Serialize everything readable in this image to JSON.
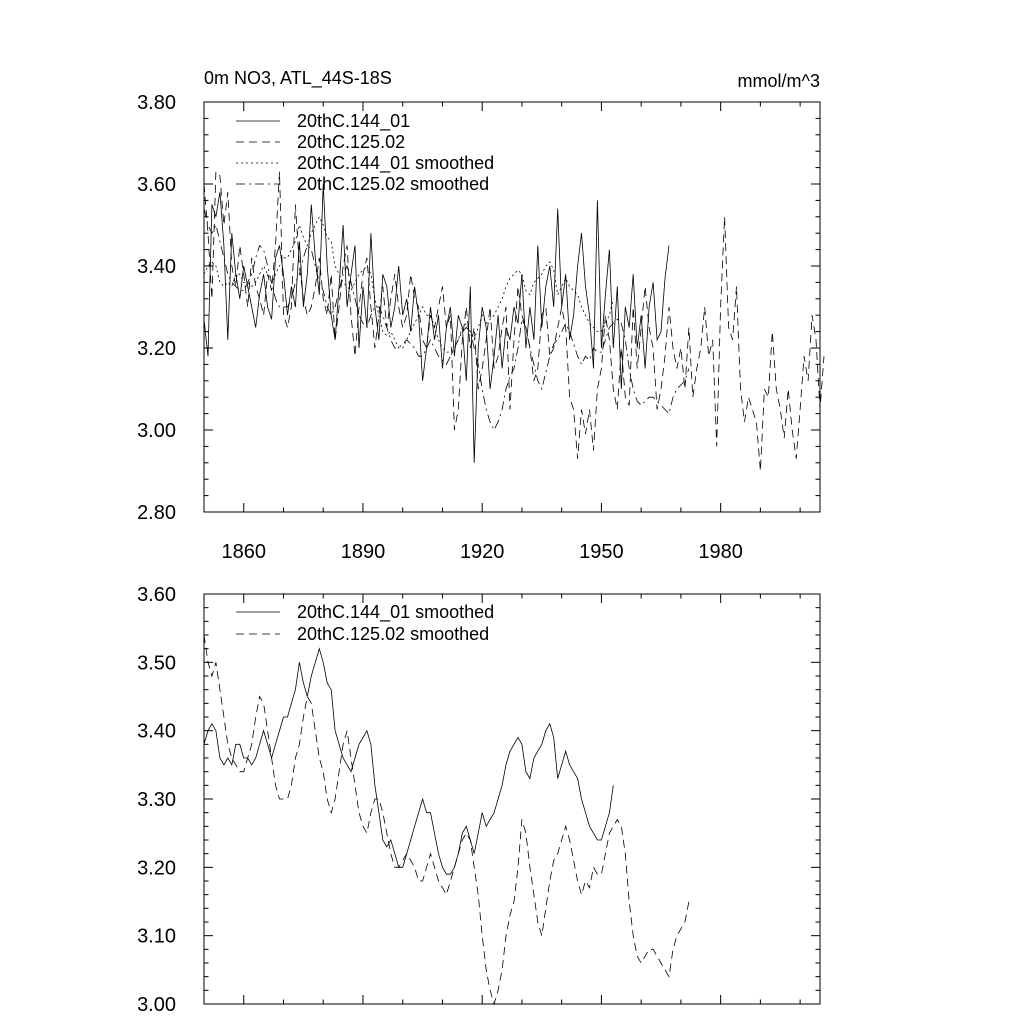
{
  "chart_data": [
    {
      "type": "line",
      "title": "0m NO3, ATL_44S-18S",
      "units": "mmol/m^3",
      "xlim": [
        1850,
        2005
      ],
      "ylim": [
        2.8,
        3.8
      ],
      "yticks": [
        "3.80",
        "3.60",
        "3.40",
        "3.20",
        "3.00",
        "2.80"
      ],
      "xticks": [
        "1860",
        "1890",
        "1920",
        "1950",
        "1980"
      ],
      "legend_position": "top-left",
      "series": [
        {
          "name": "20thC.144_01",
          "style": "solid",
          "x_start": 1850,
          "values": [
            3.27,
            3.18,
            3.55,
            3.52,
            3.58,
            3.45,
            3.22,
            3.48,
            3.38,
            3.32,
            3.4,
            3.35,
            3.3,
            3.25,
            3.33,
            3.38,
            3.3,
            3.27,
            3.42,
            3.45,
            3.38,
            3.28,
            3.35,
            3.3,
            3.46,
            3.3,
            3.38,
            3.55,
            3.42,
            3.33,
            3.6,
            3.4,
            3.28,
            3.22,
            3.35,
            3.5,
            3.3,
            3.38,
            3.45,
            3.2,
            3.35,
            3.25,
            3.48,
            3.3,
            3.22,
            3.38,
            3.35,
            3.25,
            3.3,
            3.4,
            3.28,
            3.32,
            3.24,
            3.35,
            3.28,
            3.12,
            3.2,
            3.3,
            3.22,
            3.28,
            3.15,
            3.25,
            3.3,
            3.18,
            3.28,
            3.25,
            3.12,
            3.35,
            2.92,
            3.2,
            3.3,
            3.25,
            3.1,
            3.18,
            3.28,
            3.15,
            3.25,
            3.22,
            3.3,
            3.26,
            3.38,
            3.2,
            3.3,
            3.22,
            3.45,
            3.25,
            3.35,
            3.4,
            3.3,
            3.54,
            3.3,
            3.38,
            3.22,
            3.28,
            3.4,
            3.48,
            3.35,
            3.28,
            3.15,
            3.56,
            3.2,
            3.33,
            3.44,
            3.2,
            3.35,
            3.1,
            3.3,
            3.25,
            3.38,
            3.2,
            3.28,
            3.15,
            3.3,
            3.36,
            3.22,
            3.24,
            3.37,
            3.45
          ]
        },
        {
          "name": "20thC.125.02",
          "style": "dashed",
          "x_start": 1850,
          "values": [
            3.6,
            3.48,
            3.32,
            3.63,
            3.62,
            3.5,
            3.58,
            3.4,
            3.35,
            3.45,
            3.38,
            3.3,
            3.42,
            3.35,
            3.32,
            3.28,
            3.38,
            3.34,
            3.45,
            3.63,
            3.28,
            3.25,
            3.3,
            3.55,
            3.4,
            3.32,
            3.28,
            3.3,
            3.35,
            3.42,
            3.32,
            3.28,
            3.38,
            3.22,
            3.3,
            3.4,
            3.45,
            3.28,
            3.18,
            3.3,
            3.38,
            3.42,
            3.3,
            3.2,
            3.28,
            3.35,
            3.25,
            3.32,
            3.38,
            3.3,
            3.25,
            3.28,
            3.38,
            3.32,
            3.3,
            3.22,
            3.2,
            3.28,
            3.25,
            3.3,
            3.35,
            3.25,
            3.28,
            3.0,
            3.05,
            3.22,
            3.3,
            3.2,
            3.25,
            3.1,
            3.15,
            3.22,
            3.3,
            3.15,
            3.18,
            3.25,
            3.3,
            3.05,
            3.22,
            3.35,
            3.28,
            3.25,
            3.2,
            3.12,
            3.15,
            3.28,
            3.3,
            3.18,
            3.2,
            3.25,
            3.3,
            3.25,
            3.08,
            3.05,
            2.93,
            3.05,
            2.99,
            3.05,
            2.95,
            3.1,
            3.15,
            3.28,
            3.22,
            3.1,
            3.05,
            3.2,
            3.08,
            3.06,
            3.3,
            3.15,
            3.25,
            3.35,
            3.25,
            3.2,
            3.05,
            3.1,
            3.18,
            3.3,
            3.2,
            3.15,
            3.2,
            3.1,
            3.25,
            3.08,
            3.15,
            3.2,
            3.3,
            3.18,
            3.22,
            2.96,
            3.3,
            3.52,
            3.25,
            3.22,
            3.35,
            3.1,
            3.02,
            3.08,
            3.05,
            3.02,
            2.9,
            3.1,
            3.08,
            3.24,
            3.1,
            3.05,
            2.98,
            3.1,
            3.0,
            2.93,
            3.05,
            3.18,
            3.12,
            3.28,
            3.22,
            3.05,
            3.18
          ]
        },
        {
          "name": "20thC.144_01 smoothed",
          "style": "dotted",
          "x_start": 1850,
          "values": [
            3.38,
            3.4,
            3.41,
            3.4,
            3.36,
            3.35,
            3.36,
            3.35,
            3.38,
            3.38,
            3.36,
            3.36,
            3.35,
            3.36,
            3.38,
            3.4,
            3.38,
            3.36,
            3.38,
            3.4,
            3.42,
            3.42,
            3.44,
            3.46,
            3.5,
            3.47,
            3.45,
            3.48,
            3.5,
            3.52,
            3.5,
            3.47,
            3.46,
            3.4,
            3.38,
            3.36,
            3.35,
            3.34,
            3.36,
            3.38,
            3.39,
            3.4,
            3.38,
            3.32,
            3.28,
            3.24,
            3.23,
            3.24,
            3.22,
            3.2,
            3.2,
            3.22,
            3.24,
            3.26,
            3.28,
            3.3,
            3.28,
            3.28,
            3.25,
            3.22,
            3.2,
            3.19,
            3.19,
            3.2,
            3.22,
            3.25,
            3.26,
            3.24,
            3.22,
            3.25,
            3.28,
            3.26,
            3.27,
            3.28,
            3.3,
            3.32,
            3.35,
            3.37,
            3.38,
            3.39,
            3.38,
            3.34,
            3.33,
            3.36,
            3.37,
            3.38,
            3.4,
            3.41,
            3.39,
            3.33,
            3.35,
            3.37,
            3.35,
            3.34,
            3.33,
            3.3,
            3.28,
            3.26,
            3.25,
            3.24,
            3.24,
            3.26,
            3.28,
            3.32
          ]
        },
        {
          "name": "20thC.125.02 smoothed",
          "style": "dashdot",
          "x_start": 1850,
          "values": [
            3.54,
            3.5,
            3.48,
            3.5,
            3.46,
            3.42,
            3.38,
            3.36,
            3.35,
            3.34,
            3.34,
            3.36,
            3.38,
            3.42,
            3.45,
            3.44,
            3.4,
            3.36,
            3.32,
            3.3,
            3.3,
            3.3,
            3.32,
            3.36,
            3.38,
            3.42,
            3.45,
            3.44,
            3.4,
            3.36,
            3.34,
            3.3,
            3.28,
            3.3,
            3.34,
            3.38,
            3.4,
            3.36,
            3.32,
            3.28,
            3.26,
            3.25,
            3.28,
            3.3,
            3.3,
            3.28,
            3.25,
            3.22,
            3.2,
            3.2,
            3.21,
            3.22,
            3.21,
            3.2,
            3.18,
            3.18,
            3.2,
            3.22,
            3.2,
            3.18,
            3.17,
            3.16,
            3.18,
            3.2,
            3.22,
            3.24,
            3.25,
            3.24,
            3.2,
            3.16,
            3.1,
            3.05,
            3.02,
            3.0,
            3.02,
            3.05,
            3.1,
            3.13,
            3.15,
            3.2,
            3.27,
            3.25,
            3.2,
            3.16,
            3.12,
            3.1,
            3.14,
            3.18,
            3.21,
            3.22,
            3.24,
            3.26,
            3.24,
            3.21,
            3.18,
            3.16,
            3.18,
            3.17,
            3.2,
            3.19,
            3.19,
            3.22,
            3.25,
            3.26,
            3.27,
            3.26,
            3.22,
            3.15,
            3.1,
            3.07,
            3.06,
            3.07,
            3.08,
            3.08,
            3.07,
            3.06,
            3.05,
            3.04,
            3.08,
            3.1,
            3.11,
            3.12,
            3.15
          ]
        }
      ]
    },
    {
      "type": "line",
      "title": "",
      "xlim": [
        1850,
        2005
      ],
      "ylim": [
        3.0,
        3.6
      ],
      "yticks": [
        "3.60",
        "3.50",
        "3.40",
        "3.30",
        "3.20",
        "3.10",
        "3.00"
      ],
      "legend_position": "top-left",
      "series": [
        {
          "name": "20thC.144_01 smoothed",
          "style": "solid",
          "x_start": 1850,
          "values": [
            3.38,
            3.4,
            3.41,
            3.4,
            3.36,
            3.35,
            3.36,
            3.35,
            3.38,
            3.38,
            3.36,
            3.36,
            3.35,
            3.36,
            3.38,
            3.4,
            3.38,
            3.36,
            3.38,
            3.4,
            3.42,
            3.42,
            3.44,
            3.46,
            3.5,
            3.47,
            3.45,
            3.48,
            3.5,
            3.52,
            3.5,
            3.47,
            3.46,
            3.4,
            3.38,
            3.36,
            3.35,
            3.34,
            3.36,
            3.38,
            3.39,
            3.4,
            3.38,
            3.32,
            3.28,
            3.24,
            3.23,
            3.24,
            3.22,
            3.2,
            3.2,
            3.22,
            3.24,
            3.26,
            3.28,
            3.3,
            3.28,
            3.28,
            3.25,
            3.22,
            3.2,
            3.19,
            3.19,
            3.2,
            3.22,
            3.25,
            3.26,
            3.24,
            3.22,
            3.25,
            3.28,
            3.26,
            3.27,
            3.28,
            3.3,
            3.32,
            3.35,
            3.37,
            3.38,
            3.39,
            3.38,
            3.34,
            3.33,
            3.36,
            3.37,
            3.38,
            3.4,
            3.41,
            3.39,
            3.33,
            3.35,
            3.37,
            3.35,
            3.34,
            3.33,
            3.3,
            3.28,
            3.26,
            3.25,
            3.24,
            3.24,
            3.26,
            3.28,
            3.32
          ]
        },
        {
          "name": "20thC.125.02 smoothed",
          "style": "dashed",
          "x_start": 1850,
          "values": [
            3.54,
            3.5,
            3.48,
            3.5,
            3.46,
            3.42,
            3.38,
            3.36,
            3.35,
            3.34,
            3.34,
            3.36,
            3.38,
            3.42,
            3.45,
            3.44,
            3.4,
            3.36,
            3.32,
            3.3,
            3.3,
            3.3,
            3.32,
            3.36,
            3.38,
            3.42,
            3.45,
            3.44,
            3.4,
            3.36,
            3.34,
            3.3,
            3.28,
            3.3,
            3.34,
            3.38,
            3.4,
            3.36,
            3.32,
            3.28,
            3.26,
            3.25,
            3.28,
            3.3,
            3.3,
            3.28,
            3.25,
            3.22,
            3.2,
            3.2,
            3.21,
            3.22,
            3.21,
            3.2,
            3.18,
            3.18,
            3.2,
            3.22,
            3.2,
            3.18,
            3.17,
            3.16,
            3.18,
            3.2,
            3.22,
            3.24,
            3.25,
            3.24,
            3.2,
            3.16,
            3.1,
            3.05,
            3.02,
            3.0,
            3.02,
            3.05,
            3.1,
            3.13,
            3.15,
            3.2,
            3.27,
            3.25,
            3.2,
            3.16,
            3.12,
            3.1,
            3.14,
            3.18,
            3.21,
            3.22,
            3.24,
            3.26,
            3.24,
            3.21,
            3.18,
            3.16,
            3.18,
            3.17,
            3.2,
            3.19,
            3.19,
            3.22,
            3.25,
            3.26,
            3.27,
            3.26,
            3.22,
            3.15,
            3.1,
            3.07,
            3.06,
            3.07,
            3.08,
            3.08,
            3.07,
            3.06,
            3.05,
            3.04,
            3.08,
            3.1,
            3.11,
            3.12,
            3.15
          ]
        }
      ]
    }
  ]
}
